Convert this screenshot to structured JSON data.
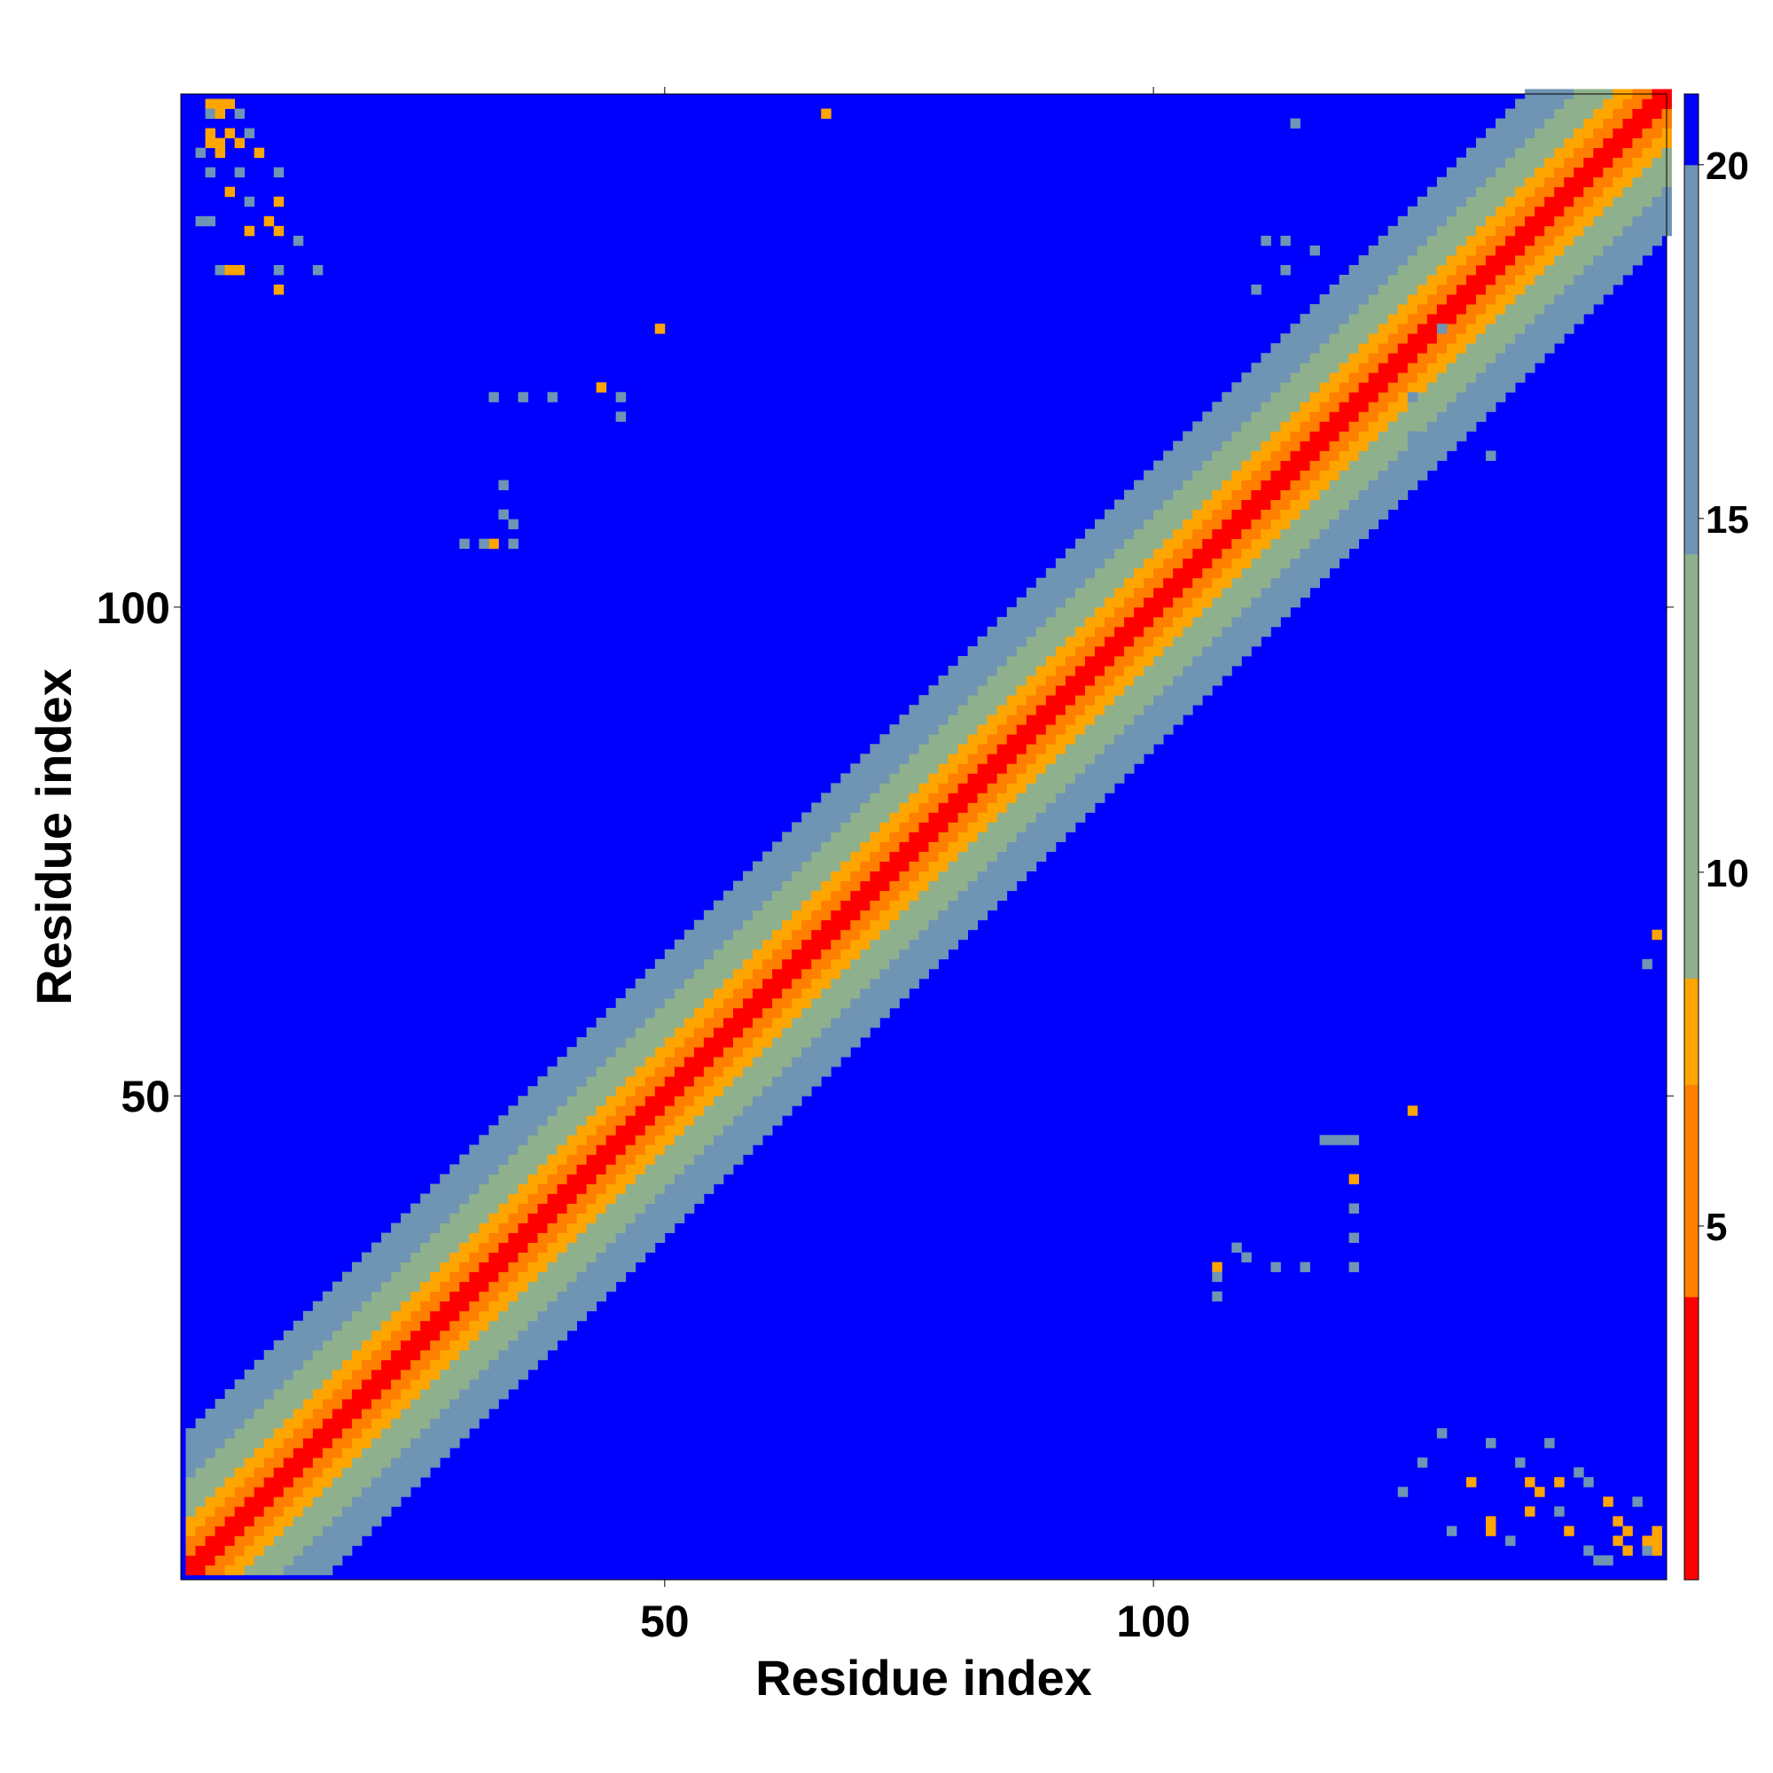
{
  "chart_data": {
    "type": "heatmap",
    "title": "",
    "xlabel": "Residue index",
    "ylabel": "Residue index",
    "n_residues": 152,
    "xlim": [
      1,
      152
    ],
    "ylim": [
      1,
      152
    ],
    "x_ticks": [
      50,
      100
    ],
    "y_ticks": [
      50,
      100
    ],
    "grid": false,
    "colorbar": {
      "placement": "right",
      "vmin": 0,
      "vmax": 21,
      "ticks": [
        5,
        10,
        15,
        20
      ],
      "colors": [
        "#ff0000",
        "#ff7f00",
        "#ffa500",
        "#8fb08c",
        "#6f94b4",
        "#0000ff"
      ],
      "bounds": [
        0,
        4,
        7,
        8.5,
        14.5,
        20,
        21
      ]
    },
    "diagonal_band": {
      "description_values": "distance grows with |i-j|",
      "profile": [
        {
          "offset_max": 1,
          "value": 1.5
        },
        {
          "offset_max": 3,
          "value": 5.5
        },
        {
          "offset_max": 5,
          "value": 7.5
        },
        {
          "offset_max": 9,
          "value": 11
        },
        {
          "offset_max": 14,
          "value": 16
        },
        {
          "offset_max": 999,
          "value": 21
        }
      ]
    },
    "off_diagonal_contacts": [
      {
        "i": 3,
        "j": 151,
        "value": 7.5
      },
      {
        "i": 4,
        "j": 151,
        "value": 7.5
      },
      {
        "i": 5,
        "j": 151,
        "value": 7.5
      },
      {
        "i": 3,
        "j": 150,
        "value": 16
      },
      {
        "i": 4,
        "j": 150,
        "value": 7.5
      },
      {
        "i": 6,
        "j": 150,
        "value": 16
      },
      {
        "i": 3,
        "j": 148,
        "value": 7.5
      },
      {
        "i": 5,
        "j": 148,
        "value": 7.5
      },
      {
        "i": 7,
        "j": 148,
        "value": 16
      },
      {
        "i": 3,
        "j": 147,
        "value": 7.5
      },
      {
        "i": 4,
        "j": 147,
        "value": 7.5
      },
      {
        "i": 6,
        "j": 147,
        "value": 7.5
      },
      {
        "i": 2,
        "j": 146,
        "value": 16
      },
      {
        "i": 4,
        "j": 146,
        "value": 7.5
      },
      {
        "i": 8,
        "j": 146,
        "value": 7.5
      },
      {
        "i": 3,
        "j": 144,
        "value": 16
      },
      {
        "i": 6,
        "j": 144,
        "value": 16
      },
      {
        "i": 10,
        "j": 144,
        "value": 16
      },
      {
        "i": 5,
        "j": 142,
        "value": 7.5
      },
      {
        "i": 7,
        "j": 141,
        "value": 16
      },
      {
        "i": 10,
        "j": 141,
        "value": 7.5
      },
      {
        "i": 2,
        "j": 139,
        "value": 16
      },
      {
        "i": 3,
        "j": 139,
        "value": 16
      },
      {
        "i": 9,
        "j": 139,
        "value": 7.5
      },
      {
        "i": 7,
        "j": 138,
        "value": 7.5
      },
      {
        "i": 10,
        "j": 138,
        "value": 7.5
      },
      {
        "i": 12,
        "j": 137,
        "value": 16
      },
      {
        "i": 4,
        "j": 134,
        "value": 16
      },
      {
        "i": 5,
        "j": 134,
        "value": 7.5
      },
      {
        "i": 6,
        "j": 134,
        "value": 7.5
      },
      {
        "i": 10,
        "j": 134,
        "value": 16
      },
      {
        "i": 14,
        "j": 134,
        "value": 16
      },
      {
        "i": 10,
        "j": 132,
        "value": 7.5
      },
      {
        "i": 66,
        "j": 150,
        "value": 7.5
      },
      {
        "i": 49,
        "j": 128,
        "value": 7.5
      },
      {
        "i": 43,
        "j": 122,
        "value": 7.5
      },
      {
        "i": 32,
        "j": 106,
        "value": 7.5
      },
      {
        "i": 32,
        "j": 121,
        "value": 16
      },
      {
        "i": 35,
        "j": 121,
        "value": 16
      },
      {
        "i": 38,
        "j": 121,
        "value": 16
      },
      {
        "i": 45,
        "j": 121,
        "value": 16
      },
      {
        "i": 45,
        "j": 119,
        "value": 16
      },
      {
        "i": 33,
        "j": 112,
        "value": 16
      },
      {
        "i": 33,
        "j": 109,
        "value": 16
      },
      {
        "i": 34,
        "j": 108,
        "value": 16
      },
      {
        "i": 29,
        "j": 106,
        "value": 16
      },
      {
        "i": 31,
        "j": 106,
        "value": 16
      },
      {
        "i": 34,
        "j": 106,
        "value": 16
      },
      {
        "i": 114,
        "j": 149,
        "value": 16
      },
      {
        "i": 111,
        "j": 137,
        "value": 16
      },
      {
        "i": 113,
        "j": 137,
        "value": 16
      },
      {
        "i": 116,
        "j": 136,
        "value": 16
      },
      {
        "i": 113,
        "j": 134,
        "value": 16
      },
      {
        "i": 110,
        "j": 132,
        "value": 16
      },
      {
        "i": 129,
        "j": 128,
        "value": 16
      },
      {
        "i": 126,
        "j": 121,
        "value": 16
      },
      {
        "i": 134,
        "j": 122,
        "value": 16
      },
      {
        "i": 133,
        "j": 119,
        "value": 16
      },
      {
        "i": 126,
        "j": 117,
        "value": 16
      },
      {
        "i": 134,
        "j": 115,
        "value": 16
      },
      {
        "i": 151,
        "j": 66,
        "value": 7.5
      },
      {
        "i": 150,
        "j": 63,
        "value": 16
      },
      {
        "i": 126,
        "j": 48,
        "value": 7.5
      },
      {
        "i": 120,
        "j": 41,
        "value": 7.5
      },
      {
        "i": 117,
        "j": 45,
        "value": 16
      },
      {
        "i": 118,
        "j": 45,
        "value": 16
      },
      {
        "i": 119,
        "j": 45,
        "value": 16
      },
      {
        "i": 120,
        "j": 45,
        "value": 16
      },
      {
        "i": 120,
        "j": 38,
        "value": 16
      },
      {
        "i": 120,
        "j": 35,
        "value": 16
      },
      {
        "i": 120,
        "j": 32,
        "value": 16
      },
      {
        "i": 106,
        "j": 32,
        "value": 7.5
      },
      {
        "i": 106,
        "j": 29,
        "value": 16
      },
      {
        "i": 106,
        "j": 31,
        "value": 16
      },
      {
        "i": 109,
        "j": 33,
        "value": 16
      },
      {
        "i": 112,
        "j": 32,
        "value": 16
      },
      {
        "i": 108,
        "j": 34,
        "value": 16
      },
      {
        "i": 115,
        "j": 32,
        "value": 16
      },
      {
        "i": 151,
        "j": 3,
        "value": 7.5
      },
      {
        "i": 151,
        "j": 4,
        "value": 7.5
      },
      {
        "i": 151,
        "j": 5,
        "value": 7.5
      },
      {
        "i": 150,
        "j": 3,
        "value": 16
      },
      {
        "i": 150,
        "j": 4,
        "value": 7.5
      },
      {
        "i": 148,
        "j": 3,
        "value": 7.5
      },
      {
        "i": 148,
        "j": 5,
        "value": 7.5
      },
      {
        "i": 147,
        "j": 4,
        "value": 7.5
      },
      {
        "i": 147,
        "j": 6,
        "value": 7.5
      },
      {
        "i": 146,
        "j": 2,
        "value": 16
      },
      {
        "i": 146,
        "j": 8,
        "value": 7.5
      },
      {
        "i": 144,
        "j": 3,
        "value": 16
      },
      {
        "i": 144,
        "j": 10,
        "value": 16
      },
      {
        "i": 142,
        "j": 5,
        "value": 7.5
      },
      {
        "i": 141,
        "j": 7,
        "value": 16
      },
      {
        "i": 141,
        "j": 10,
        "value": 7.5
      },
      {
        "i": 139,
        "j": 9,
        "value": 7.5
      },
      {
        "i": 138,
        "j": 7,
        "value": 7.5
      },
      {
        "i": 138,
        "j": 10,
        "value": 7.5
      },
      {
        "i": 137,
        "j": 12,
        "value": 16
      },
      {
        "i": 134,
        "j": 5,
        "value": 7.5
      },
      {
        "i": 134,
        "j": 6,
        "value": 7.5
      },
      {
        "i": 134,
        "j": 14,
        "value": 16
      },
      {
        "i": 132,
        "j": 10,
        "value": 7.5
      },
      {
        "i": 129,
        "j": 15,
        "value": 16
      },
      {
        "i": 127,
        "j": 12,
        "value": 16
      },
      {
        "i": 125,
        "j": 9,
        "value": 16
      },
      {
        "i": 130,
        "j": 5,
        "value": 16
      },
      {
        "i": 136,
        "j": 4,
        "value": 16
      },
      {
        "i": 145,
        "j": 2,
        "value": 16
      },
      {
        "i": 149,
        "j": 8,
        "value": 16
      },
      {
        "i": 143,
        "j": 11,
        "value": 16
      },
      {
        "i": 140,
        "j": 14,
        "value": 16
      }
    ]
  }
}
